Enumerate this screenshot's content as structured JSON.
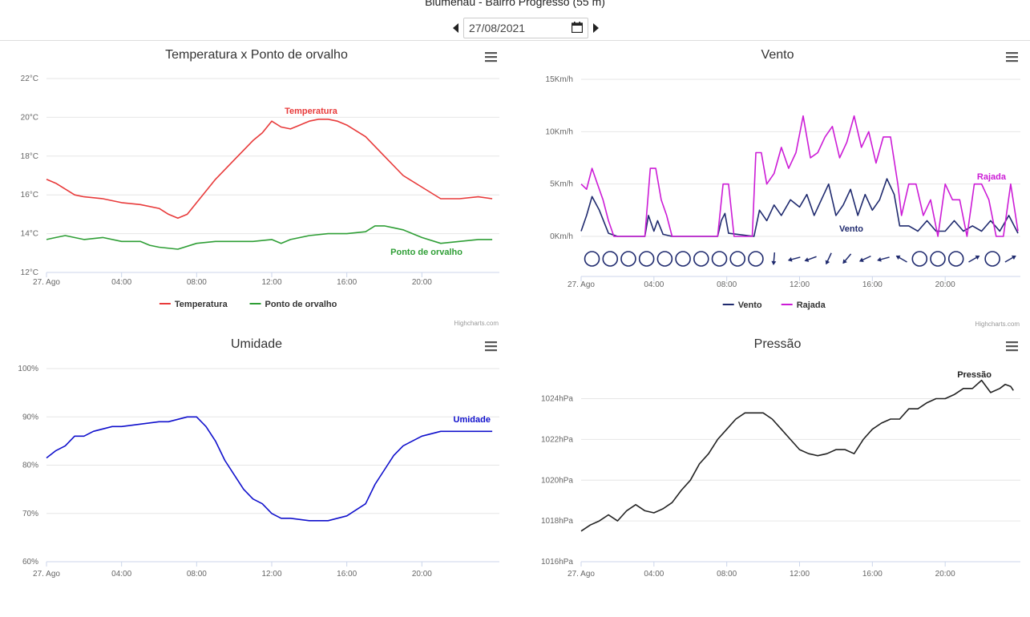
{
  "header": {
    "station_title": "Blumenau - Bairro Progresso (55 m)",
    "date_value": "27/08/2021",
    "prev_icon": "caret-left-icon",
    "next_icon": "caret-right-icon",
    "calendar_icon": "calendar-icon"
  },
  "menu_icon": "hamburger-menu-icon",
  "credits": "Highcharts.com",
  "x_ticks": [
    "27. Ago",
    "04:00",
    "08:00",
    "12:00",
    "16:00",
    "20:00"
  ],
  "chart_data": [
    {
      "id": "temp",
      "type": "line",
      "title": "Temperatura x Ponto de orvalho",
      "y_ticks": [
        "12°C",
        "14°C",
        "16°C",
        "18°C",
        "20°C",
        "22°C"
      ],
      "ylim": [
        12,
        22
      ],
      "xlim_hours": [
        0,
        24
      ],
      "grid": true,
      "legend": "bottom-center",
      "series": [
        {
          "name": "Temperatura",
          "color": "#e83a3a",
          "x": [
            0,
            0.5,
            1,
            1.5,
            2,
            3,
            4,
            5,
            6,
            6.5,
            7,
            7.5,
            8,
            9,
            10,
            11,
            11.5,
            12,
            12.5,
            13,
            13.5,
            14,
            14.5,
            15,
            15.5,
            16,
            17,
            18,
            19,
            20,
            21,
            22,
            23,
            23.75
          ],
          "y": [
            16.8,
            16.6,
            16.3,
            16.0,
            15.9,
            15.8,
            15.6,
            15.5,
            15.3,
            15.0,
            14.8,
            15.0,
            15.6,
            16.8,
            17.8,
            18.8,
            19.2,
            19.8,
            19.5,
            19.4,
            19.6,
            19.8,
            19.9,
            19.9,
            19.8,
            19.6,
            19.0,
            18.0,
            17.0,
            16.4,
            15.8,
            15.8,
            15.9,
            15.8
          ]
        },
        {
          "name": "Ponto de orvalho",
          "color": "#2e9e35",
          "x": [
            0,
            0.5,
            1,
            2,
            3,
            4,
            5,
            5.5,
            6,
            7,
            8,
            9,
            10,
            11,
            12,
            12.5,
            13,
            14,
            15,
            16,
            17,
            17.5,
            18,
            18.5,
            19,
            20,
            21,
            22,
            23,
            23.75
          ],
          "y": [
            13.7,
            13.8,
            13.9,
            13.7,
            13.8,
            13.6,
            13.6,
            13.4,
            13.3,
            13.2,
            13.5,
            13.6,
            13.6,
            13.6,
            13.7,
            13.5,
            13.7,
            13.9,
            14.0,
            14.0,
            14.1,
            14.4,
            14.4,
            14.3,
            14.2,
            13.8,
            13.5,
            13.6,
            13.7,
            13.7
          ]
        }
      ],
      "annotations": [
        {
          "text": "Temperatura",
          "series": 0
        },
        {
          "text": "Ponto de orvalho",
          "series": 1
        }
      ]
    },
    {
      "id": "wind",
      "type": "line",
      "title": "Vento",
      "y_ticks": [
        "0Km/h",
        "5Km/h",
        "10Km/h",
        "15Km/h"
      ],
      "ylim": [
        0,
        15
      ],
      "xlim_hours": [
        0,
        24
      ],
      "grid": true,
      "legend": "bottom-center",
      "series": [
        {
          "name": "Vento",
          "color": "#1f2a6e",
          "x": [
            0,
            0.3,
            0.6,
            1,
            1.5,
            2,
            3.5,
            3.7,
            4,
            4.2,
            4.5,
            5,
            7.5,
            7.7,
            7.9,
            8.1,
            9.5,
            9.8,
            10.2,
            10.6,
            11,
            11.5,
            12,
            12.4,
            12.8,
            13.2,
            13.6,
            14,
            14.4,
            14.8,
            15.2,
            15.6,
            16,
            16.4,
            16.8,
            17.2,
            17.5,
            18,
            18.5,
            19,
            19.5,
            20,
            20.5,
            21,
            21.5,
            22,
            22.5,
            23,
            23.5,
            24
          ],
          "y": [
            0.5,
            2.0,
            3.8,
            2.5,
            0.3,
            0,
            0,
            2.0,
            0.5,
            1.5,
            0.2,
            0,
            0,
            1.5,
            2.2,
            0.3,
            0,
            2.5,
            1.5,
            3.0,
            2.0,
            3.5,
            2.8,
            4.0,
            2.0,
            3.5,
            5.0,
            2.0,
            3.0,
            4.5,
            2.0,
            4.0,
            2.5,
            3.5,
            5.5,
            4.0,
            1.0,
            1.0,
            0.5,
            1.5,
            0.5,
            0.5,
            1.5,
            0.5,
            1.0,
            0.5,
            1.5,
            0.5,
            2.0,
            0.3
          ]
        },
        {
          "name": "Rajada",
          "color": "#cc1cd6",
          "x": [
            0,
            0.3,
            0.6,
            0.9,
            1.2,
            1.5,
            1.8,
            3.5,
            3.8,
            4.1,
            4.4,
            4.7,
            5.0,
            7.5,
            7.8,
            8.1,
            8.4,
            9.4,
            9.6,
            9.9,
            10.2,
            10.6,
            11.0,
            11.4,
            11.8,
            12.2,
            12.6,
            13.0,
            13.4,
            13.8,
            14.2,
            14.6,
            15.0,
            15.4,
            15.8,
            16.2,
            16.6,
            17.0,
            17.4,
            17.6,
            18.0,
            18.4,
            18.8,
            19.2,
            19.6,
            20.0,
            20.4,
            20.8,
            21.2,
            21.6,
            22.0,
            22.4,
            22.8,
            23.2,
            23.6,
            24
          ],
          "y": [
            5.0,
            4.5,
            6.5,
            5.0,
            3.5,
            1.5,
            0,
            0,
            6.5,
            6.5,
            3.5,
            2.0,
            0,
            0,
            5.0,
            5.0,
            0,
            0,
            8.0,
            8.0,
            5.0,
            6.0,
            8.5,
            6.5,
            8.0,
            11.5,
            7.5,
            8.0,
            9.5,
            10.5,
            7.5,
            9.0,
            11.5,
            8.5,
            10.0,
            7.0,
            9.5,
            9.5,
            5.0,
            2.0,
            5.0,
            5.0,
            2.0,
            3.5,
            0,
            5.0,
            3.5,
            3.5,
            0,
            5.0,
            5.0,
            3.5,
            0,
            0,
            5.0,
            0.5
          ]
        }
      ],
      "direction_row": {
        "x": [
          0.2,
          1.2,
          2.2,
          3.2,
          4.2,
          5.2,
          6.2,
          7.2,
          8.2,
          9.2,
          10.2,
          11.3,
          12.2,
          13.2,
          14.2,
          15.2,
          16.2,
          17.2,
          18.2,
          19.2,
          20.2,
          21.2,
          22.2,
          23.2
        ],
        "symbols": [
          "circle",
          "circle",
          "circle",
          "circle",
          "circle",
          "circle",
          "circle",
          "circle",
          "circle",
          "circle",
          "arrow",
          "arrow",
          "arrow",
          "arrow",
          "arrow",
          "arrow",
          "arrow",
          "arrow",
          "circle",
          "circle",
          "circle",
          "arrow",
          "circle",
          "arrow"
        ],
        "angles_deg": [
          0,
          0,
          0,
          0,
          0,
          0,
          0,
          0,
          0,
          0,
          95,
          165,
          160,
          115,
          130,
          155,
          165,
          210,
          0,
          0,
          0,
          330,
          0,
          330
        ]
      },
      "annotations": [
        {
          "text": "Vento",
          "series": 0
        },
        {
          "text": "Rajada",
          "series": 1
        }
      ]
    },
    {
      "id": "hum",
      "type": "line",
      "title": "Umidade",
      "y_ticks": [
        "60%",
        "70%",
        "80%",
        "90%",
        "100%"
      ],
      "ylim": [
        60,
        100
      ],
      "xlim_hours": [
        0,
        24
      ],
      "grid": true,
      "legend": "none",
      "series": [
        {
          "name": "Umidade",
          "color": "#1010cc",
          "x": [
            0,
            0.5,
            1,
            1.5,
            2,
            2.5,
            3,
            3.5,
            4,
            5,
            6,
            6.5,
            7,
            7.5,
            8,
            8.5,
            9,
            9.5,
            10,
            10.5,
            11,
            11.5,
            12,
            12.5,
            13,
            14,
            15,
            16,
            17,
            17.5,
            18,
            18.5,
            19,
            20,
            21,
            22,
            23,
            23.75
          ],
          "y": [
            81.5,
            83,
            84,
            86,
            86,
            87,
            87.5,
            88,
            88,
            88.5,
            89,
            89,
            89.5,
            90,
            90,
            88,
            85,
            81,
            78,
            75,
            73,
            72,
            70,
            69,
            69,
            68.5,
            68.5,
            69.5,
            72,
            76,
            79,
            82,
            84,
            86,
            87,
            87,
            87,
            87
          ]
        }
      ],
      "annotations": [
        {
          "text": "Umidade",
          "series": 0
        }
      ]
    },
    {
      "id": "press",
      "type": "line",
      "title": "Pressão",
      "y_ticks": [
        "1016hPa",
        "1018hPa",
        "1020hPa",
        "1022hPa",
        "1024hPa"
      ],
      "ylim": [
        1016,
        1025.2
      ],
      "xlim_hours": [
        0,
        24
      ],
      "grid": true,
      "legend": "none",
      "series": [
        {
          "name": "Pressão",
          "color": "#222222",
          "x": [
            0,
            0.5,
            1,
            1.5,
            2,
            2.5,
            3,
            3.5,
            4,
            4.5,
            5,
            5.5,
            6,
            6.5,
            7,
            7.5,
            8,
            8.5,
            9,
            9.5,
            10,
            10.5,
            11,
            11.5,
            12,
            12.5,
            13,
            13.5,
            14,
            14.5,
            15,
            15.5,
            16,
            16.5,
            17,
            17.5,
            18,
            18.5,
            19,
            19.5,
            20,
            20.5,
            21,
            21.5,
            22,
            22.5,
            23,
            23.3,
            23.6,
            23.75
          ],
          "y": [
            1017.5,
            1017.8,
            1018.0,
            1018.3,
            1018.0,
            1018.5,
            1018.8,
            1018.5,
            1018.4,
            1018.6,
            1018.9,
            1019.5,
            1020.0,
            1020.8,
            1021.3,
            1022.0,
            1022.5,
            1023.0,
            1023.3,
            1023.3,
            1023.3,
            1023.0,
            1022.5,
            1022.0,
            1021.5,
            1021.3,
            1021.2,
            1021.3,
            1021.5,
            1021.5,
            1021.3,
            1022.0,
            1022.5,
            1022.8,
            1023.0,
            1023.0,
            1023.5,
            1023.5,
            1023.8,
            1024.0,
            1024.0,
            1024.2,
            1024.5,
            1024.5,
            1024.9,
            1024.3,
            1024.5,
            1024.7,
            1024.6,
            1024.4
          ]
        }
      ],
      "annotations": [
        {
          "text": "Pressão",
          "series": 0
        }
      ]
    }
  ]
}
